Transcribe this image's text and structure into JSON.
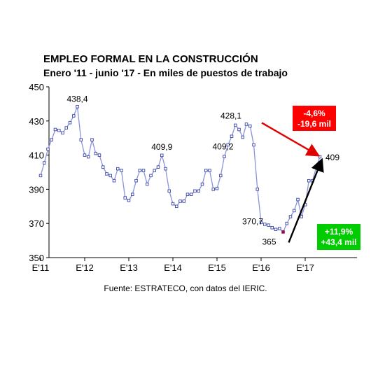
{
  "title": "EMPLEO FORMAL EN LA CONSTRUCCIÓN",
  "subtitle": "Enero '11 - junio '17 - En miles de puestos de trabajo",
  "source": "Fuente: ESTRATECO, con datos del IERIC.",
  "colors": {
    "series_line": "#8a93d9",
    "marker_fill": "#ffffff",
    "marker_stroke": "#3a46a8",
    "min_marker": "#8b0a4a",
    "red_box": "#ff0000",
    "green_box": "#00cc00",
    "red_arrow": "#e00000",
    "black_arrow": "#000000"
  },
  "chart_data": {
    "type": "line",
    "title": "EMPLEO FORMAL EN LA CONSTRUCCIÓN",
    "subtitle": "Enero '11 - junio '17 - En miles de puestos de trabajo",
    "ylim": [
      350,
      450
    ],
    "yticks": [
      350,
      370,
      390,
      410,
      430,
      450
    ],
    "xtick_labels": [
      "E'11",
      "E'12",
      "E'13",
      "E'14",
      "E'15",
      "E'16",
      "E'17"
    ],
    "xtick_index": [
      0,
      12,
      24,
      36,
      48,
      60,
      72
    ],
    "grid": false,
    "series": [
      {
        "values": [
          398,
          405.5,
          413.5,
          419,
          425,
          424.5,
          423,
          426,
          429,
          433,
          438.4,
          419,
          410,
          409,
          419,
          411,
          410,
          403,
          399,
          398,
          395,
          402,
          401,
          385,
          383.5,
          387,
          395,
          401,
          401,
          393,
          398,
          401,
          403,
          409.9,
          402,
          389,
          381.5,
          380,
          383,
          383,
          387,
          387,
          389,
          389,
          393,
          401,
          401,
          390,
          390.5,
          398,
          409.2,
          416,
          421,
          427.5,
          425,
          420.5,
          428.1,
          427,
          416,
          390,
          370.7,
          369.5,
          369,
          367.5,
          366.5,
          367,
          365,
          370,
          374,
          377.5,
          384,
          374,
          381,
          395,
          395,
          403,
          409
        ]
      }
    ],
    "annotations": [
      {
        "text": "438,4",
        "index": 10,
        "value": 438.4
      },
      {
        "text": "409,9",
        "index": 33,
        "value": 409.9
      },
      {
        "text": "409,2",
        "index": 50,
        "value": 409.2
      },
      {
        "text": "428,1",
        "index": 56,
        "value": 428.1
      },
      {
        "text": "370,7",
        "index": 60,
        "value": 370.7
      },
      {
        "text": "365",
        "index": 66,
        "value": 365
      },
      {
        "text": "409",
        "index": 76,
        "value": 409
      }
    ],
    "callouts": [
      {
        "name": "decline",
        "lines": [
          "-4,6%",
          "-19,6 mil"
        ],
        "color": "red",
        "arrow_from_index": 56,
        "arrow_to_index": 76
      },
      {
        "name": "increase",
        "lines": [
          "+11,9%",
          "+43,4 mil"
        ],
        "color": "green",
        "arrow_from_index": 66,
        "arrow_to_index": 76
      }
    ]
  }
}
